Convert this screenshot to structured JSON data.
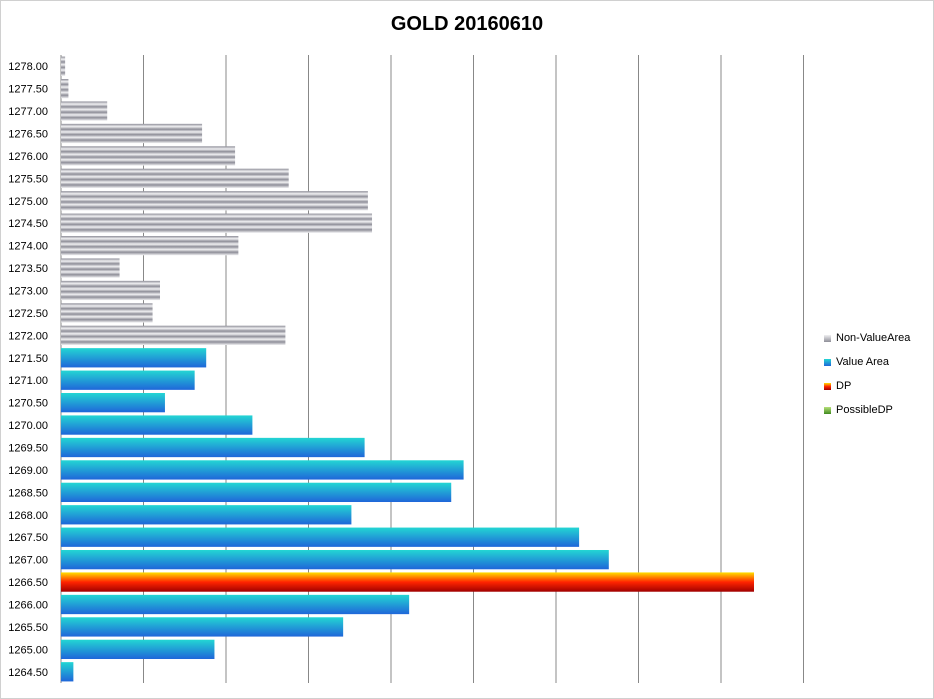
{
  "chart_data": {
    "type": "bar",
    "orientation": "horizontal",
    "title": "GOLD 20160610",
    "xlabel": "",
    "ylabel": "",
    "xlim": [
      0,
      900
    ],
    "x_gridlines": [
      100,
      200,
      300,
      400,
      500,
      600,
      700,
      800,
      900
    ],
    "x_tick_labels_shown": false,
    "grid": true,
    "legend_position": "right",
    "categories": [
      "1278.00",
      "1277.50",
      "1277.00",
      "1276.50",
      "1276.00",
      "1275.50",
      "1275.00",
      "1274.50",
      "1274.00",
      "1273.50",
      "1273.00",
      "1272.50",
      "1272.00",
      "1271.50",
      "1271.00",
      "1270.50",
      "1270.00",
      "1269.50",
      "1269.00",
      "1268.50",
      "1268.00",
      "1267.50",
      "1267.00",
      "1266.50",
      "1266.00",
      "1265.50",
      "1265.00",
      "1264.50"
    ],
    "values": [
      5,
      9,
      56,
      171,
      211,
      276,
      372,
      377,
      215,
      71,
      120,
      111,
      272,
      176,
      162,
      126,
      232,
      368,
      488,
      473,
      352,
      628,
      664,
      840,
      422,
      342,
      186,
      15
    ],
    "series_assignment": [
      "Non-ValueArea",
      "Non-ValueArea",
      "Non-ValueArea",
      "Non-ValueArea",
      "Non-ValueArea",
      "Non-ValueArea",
      "Non-ValueArea",
      "Non-ValueArea",
      "Non-ValueArea",
      "Non-ValueArea",
      "Non-ValueArea",
      "Non-ValueArea",
      "Non-ValueArea",
      "Value Area",
      "Value Area",
      "Value Area",
      "Value Area",
      "Value Area",
      "Value Area",
      "Value Area",
      "Value Area",
      "Value Area",
      "Value Area",
      "DP",
      "Value Area",
      "Value Area",
      "Value Area",
      "Value Area"
    ],
    "legend": [
      {
        "name": "Non-ValueArea",
        "colors": [
          "#8e8e98",
          "#f0f0f2"
        ]
      },
      {
        "name": "Value Area",
        "colors": [
          "#1f66d9",
          "#23d6d3"
        ]
      },
      {
        "name": "DP",
        "colors": [
          "#a00000",
          "#ff2400",
          "#ffe000"
        ]
      },
      {
        "name": "PossibleDP",
        "colors": [
          "#3f8a1f",
          "#b7e07a"
        ]
      }
    ],
    "grid_color": "#888888"
  }
}
